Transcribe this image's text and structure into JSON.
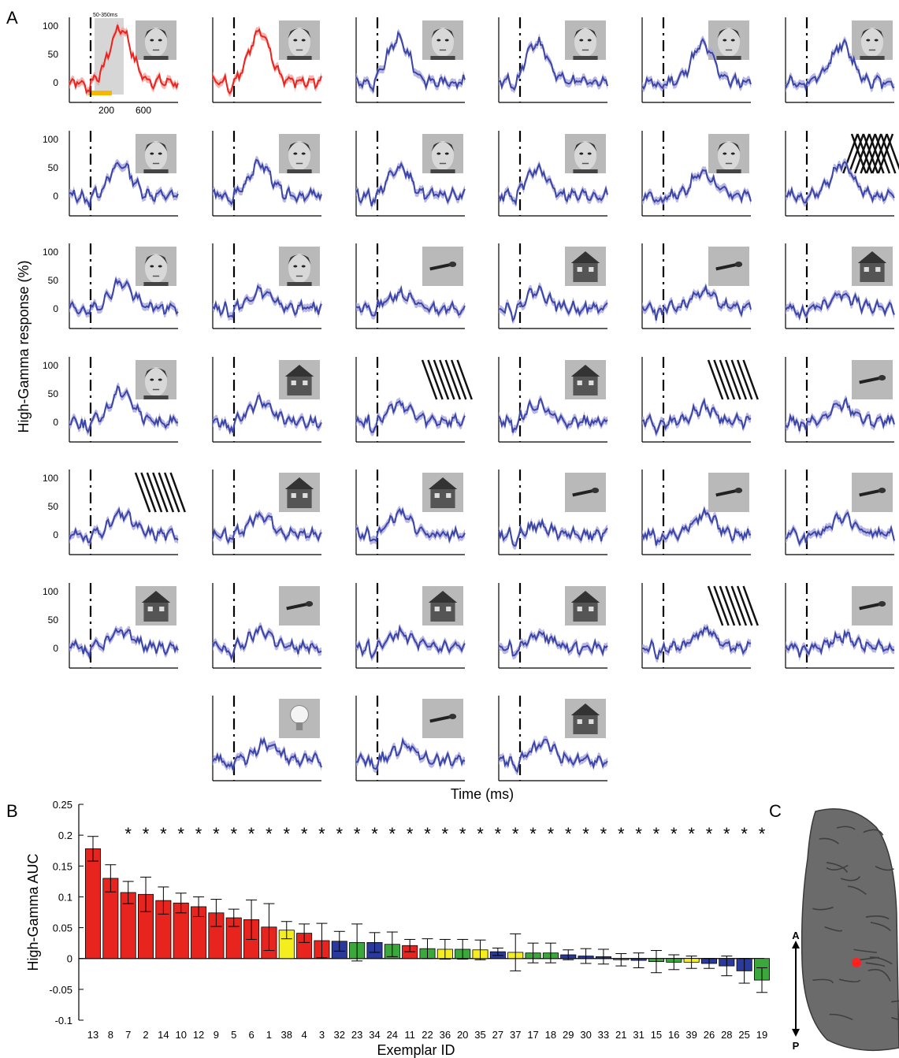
{
  "panel_labels": {
    "a": "A",
    "b": "B",
    "c": "C"
  },
  "colors": {
    "face": "#e8241f",
    "nonface": "#3a45a5",
    "nonface_band": "#a9a6dc",
    "face_band": "#f3a19d",
    "window_shade": "#d6d6d6",
    "window_bar": "#f5b800",
    "bar_red": "#e8241f",
    "bar_yellow": "#f4ee1e",
    "bar_blue": "#2a3a9c",
    "bar_green": "#3aa83a",
    "brain": "#6b6b6b",
    "marker": "#ff2020"
  },
  "panel_a": {
    "ylabel": "High-Gamma response (%)",
    "xlabel": "Time (ms)",
    "yticks": [
      "100",
      "50",
      "0"
    ],
    "xticks": [
      "200",
      "600"
    ],
    "window_label": "50-350ms",
    "grid_columns": 6,
    "panels": [
      {
        "stim": "face",
        "color": "face",
        "peak": 0.95
      },
      {
        "stim": "face",
        "color": "face",
        "peak": 0.85
      },
      {
        "stim": "face",
        "color": "nonface",
        "peak": 0.75
      },
      {
        "stim": "face",
        "color": "nonface",
        "peak": 0.7
      },
      {
        "stim": "face",
        "color": "nonface",
        "peak": 0.65
      },
      {
        "stim": "face",
        "color": "nonface",
        "peak": 0.65
      },
      {
        "stim": "face",
        "color": "nonface",
        "peak": 0.55
      },
      {
        "stim": "face",
        "color": "nonface",
        "peak": 0.55
      },
      {
        "stim": "face",
        "color": "nonface",
        "peak": 0.5
      },
      {
        "stim": "face",
        "color": "nonface",
        "peak": 0.45
      },
      {
        "stim": "face",
        "color": "nonface",
        "peak": 0.4
      },
      {
        "stim": "texture",
        "color": "nonface",
        "peak": 0.55
      },
      {
        "stim": "face",
        "color": "nonface",
        "peak": 0.45
      },
      {
        "stim": "face",
        "color": "nonface",
        "peak": 0.3
      },
      {
        "stim": "tool",
        "color": "nonface",
        "peak": 0.25
      },
      {
        "stim": "house",
        "color": "nonface",
        "peak": 0.3
      },
      {
        "stim": "tool",
        "color": "nonface",
        "peak": 0.3
      },
      {
        "stim": "house",
        "color": "nonface",
        "peak": 0.25
      },
      {
        "stim": "face",
        "color": "nonface",
        "peak": 0.55
      },
      {
        "stim": "house",
        "color": "nonface",
        "peak": 0.35
      },
      {
        "stim": "texture",
        "color": "nonface",
        "peak": 0.3
      },
      {
        "stim": "house",
        "color": "nonface",
        "peak": 0.3
      },
      {
        "stim": "texture",
        "color": "nonface",
        "peak": 0.25
      },
      {
        "stim": "tool",
        "color": "nonface",
        "peak": 0.3
      },
      {
        "stim": "texture",
        "color": "nonface",
        "peak": 0.35
      },
      {
        "stim": "house",
        "color": "nonface",
        "peak": 0.35
      },
      {
        "stim": "house",
        "color": "nonface",
        "peak": 0.35
      },
      {
        "stim": "tool",
        "color": "nonface",
        "peak": 0.15
      },
      {
        "stim": "tool",
        "color": "nonface",
        "peak": 0.35
      },
      {
        "stim": "tool",
        "color": "nonface",
        "peak": 0.3
      },
      {
        "stim": "house",
        "color": "nonface",
        "peak": 0.3
      },
      {
        "stim": "tool",
        "color": "nonface",
        "peak": 0.3
      },
      {
        "stim": "house",
        "color": "nonface",
        "peak": 0.25
      },
      {
        "stim": "house",
        "color": "nonface",
        "peak": 0.25
      },
      {
        "stim": "texture",
        "color": "nonface",
        "peak": 0.3
      },
      {
        "stim": "tool",
        "color": "nonface",
        "peak": 0.2
      },
      {
        "stim": "bulb",
        "color": "nonface",
        "peak": 0.3
      },
      {
        "stim": "tool",
        "color": "nonface",
        "peak": 0.25
      },
      {
        "stim": "house",
        "color": "nonface",
        "peak": 0.3
      }
    ]
  },
  "chart_data": {
    "type": "bar",
    "ylabel": "High-Gamma AUC",
    "xlabel": "Exemplar ID",
    "ylim": [
      -0.1,
      0.25
    ],
    "yticks": [
      "0.25",
      "0.2",
      "0.15",
      "0.1",
      "0.05",
      "0",
      "-0.05",
      "-0.1"
    ],
    "categories": [
      "13",
      "8",
      "7",
      "2",
      "14",
      "10",
      "12",
      "9",
      "5",
      "6",
      "1",
      "38",
      "4",
      "3",
      "32",
      "23",
      "34",
      "24",
      "11",
      "22",
      "36",
      "20",
      "35",
      "27",
      "37",
      "17",
      "18",
      "29",
      "30",
      "33",
      "21",
      "31",
      "15",
      "16",
      "39",
      "26",
      "28",
      "25",
      "19"
    ],
    "values": [
      0.178,
      0.13,
      0.107,
      0.104,
      0.094,
      0.09,
      0.084,
      0.074,
      0.066,
      0.063,
      0.051,
      0.046,
      0.041,
      0.029,
      0.028,
      0.026,
      0.026,
      0.023,
      0.021,
      0.016,
      0.015,
      0.015,
      0.014,
      0.011,
      0.01,
      0.009,
      0.009,
      0.006,
      0.004,
      0.003,
      -0.002,
      -0.003,
      -0.005,
      -0.006,
      -0.006,
      -0.008,
      -0.012,
      -0.02,
      -0.035
    ],
    "errors": [
      0.02,
      0.022,
      0.018,
      0.028,
      0.022,
      0.016,
      0.016,
      0.022,
      0.014,
      0.032,
      0.038,
      0.014,
      0.015,
      0.028,
      0.016,
      0.03,
      0.016,
      0.02,
      0.01,
      0.016,
      0.016,
      0.016,
      0.016,
      0.006,
      0.03,
      0.016,
      0.016,
      0.008,
      0.012,
      0.012,
      0.01,
      0.012,
      0.018,
      0.012,
      0.01,
      0.008,
      0.016,
      0.02,
      0.02
    ],
    "colors": [
      "red",
      "red",
      "red",
      "red",
      "red",
      "red",
      "red",
      "red",
      "red",
      "red",
      "red",
      "yellow",
      "red",
      "red",
      "blue",
      "green",
      "blue",
      "green",
      "red",
      "green",
      "yellow",
      "green",
      "yellow",
      "blue",
      "yellow",
      "green",
      "green",
      "blue",
      "blue",
      "blue",
      "green",
      "blue",
      "green",
      "green",
      "yellow",
      "blue",
      "blue",
      "blue",
      "green"
    ],
    "significance_marker": "*",
    "significance_from_index": 2
  },
  "panel_c": {
    "label_a": "A",
    "label_p": "P"
  }
}
